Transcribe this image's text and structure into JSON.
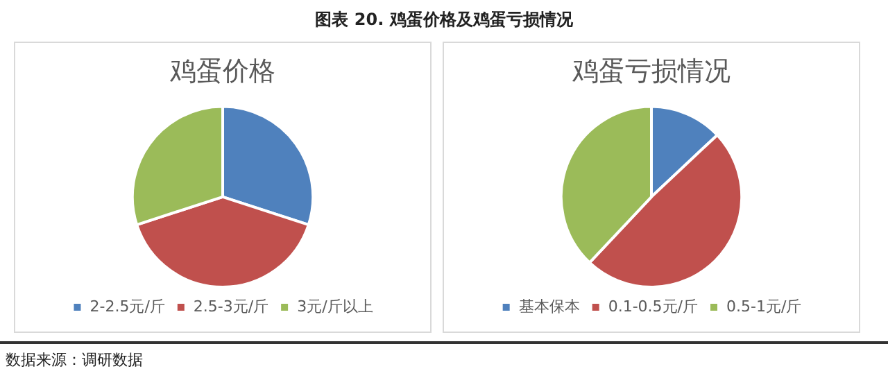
{
  "chart_data": [
    {
      "type": "pie",
      "title": "鸡蛋价格",
      "categories": [
        "2-2.5元/斤",
        "2.5-3元/斤",
        "3元/斤以上"
      ],
      "values": [
        30,
        40,
        30
      ],
      "colors": [
        "#4f81bd",
        "#c0504d",
        "#9bbb59"
      ],
      "legend": "bottom",
      "annotations": [
        "图表 20. 鸡蛋价格及鸡蛋亏损情况",
        "数据来源：调研数据"
      ]
    },
    {
      "type": "pie",
      "title": "鸡蛋亏损情况",
      "categories": [
        "基本保本",
        "0.1-0.5元/斤",
        "0.5-1元/斤"
      ],
      "values": [
        13,
        49,
        38
      ],
      "colors": [
        "#4f81bd",
        "#c0504d",
        "#9bbb59"
      ],
      "legend": "bottom"
    }
  ]
}
